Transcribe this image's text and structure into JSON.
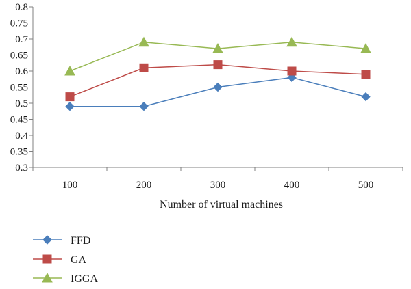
{
  "chart_data": {
    "type": "line",
    "title": "",
    "xlabel": "Number of virtual machines",
    "ylabel": "",
    "categories": [
      "100",
      "200",
      "300",
      "400",
      "500"
    ],
    "ylim": [
      0.3,
      0.8
    ],
    "yticks": [
      "0.3",
      "0.35",
      "0.4",
      "0.45",
      "0.5",
      "0.55",
      "0.6",
      "0.65",
      "0.7",
      "0.75",
      "0.8"
    ],
    "grid": false,
    "legend_position": "bottom-left",
    "series": [
      {
        "name": "FFD",
        "values": [
          0.49,
          0.49,
          0.55,
          0.58,
          0.52
        ],
        "color": "#4a7ebb",
        "marker": "diamond"
      },
      {
        "name": "GA",
        "values": [
          0.52,
          0.61,
          0.62,
          0.6,
          0.59
        ],
        "color": "#be4b48",
        "marker": "square"
      },
      {
        "name": "IGGA",
        "values": [
          0.6,
          0.69,
          0.67,
          0.69,
          0.67
        ],
        "color": "#98b954",
        "marker": "triangle"
      }
    ]
  }
}
